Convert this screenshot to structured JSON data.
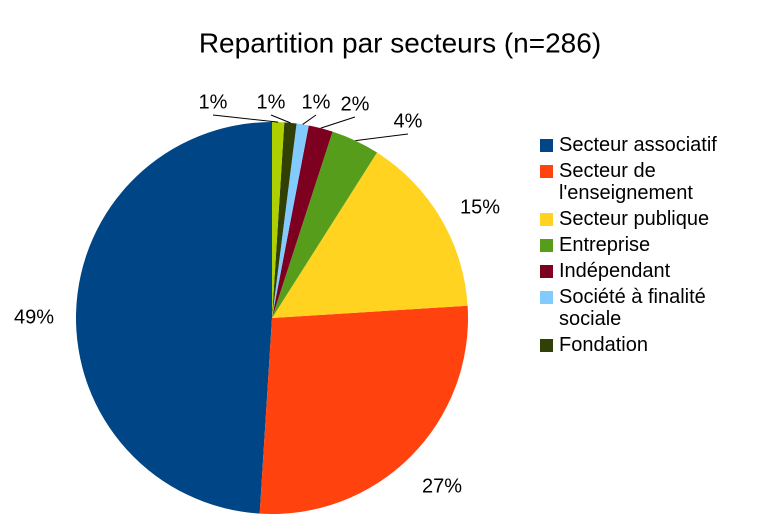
{
  "chart_data": {
    "type": "pie",
    "title": "Repartition par secteurs (n=286)",
    "categories": [
      "Secteur associatif",
      "Secteur de l'enseignement",
      "Secteur publique",
      "Entreprise",
      "Indépendant",
      "Société à finalité sociale",
      "Fondation",
      null
    ],
    "values": [
      49,
      27,
      15,
      4,
      2,
      1,
      1,
      1
    ],
    "value_labels": [
      "49%",
      "27%",
      "15%",
      "4%",
      "2%",
      "1%",
      "1%",
      "1%"
    ],
    "colors": [
      "#004586",
      "#ff420e",
      "#ffd320",
      "#579d1c",
      "#7e0021",
      "#83caff",
      "#314004",
      "#aecf00"
    ],
    "legend": "right"
  }
}
